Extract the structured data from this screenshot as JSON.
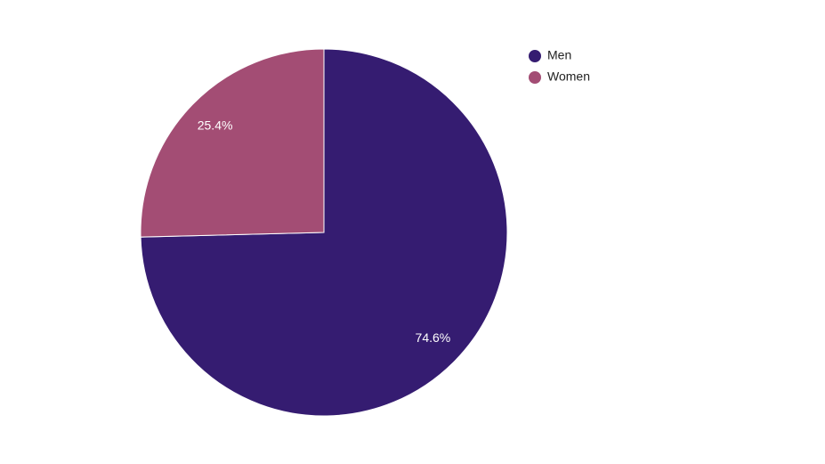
{
  "chart_data": {
    "type": "pie",
    "categories": [
      "Men",
      "Women"
    ],
    "values": [
      74.6,
      25.4
    ],
    "value_labels": [
      "74.6%",
      "25.4%"
    ],
    "colors": [
      "#351c71",
      "#a34d74"
    ],
    "legend": "top-right"
  }
}
